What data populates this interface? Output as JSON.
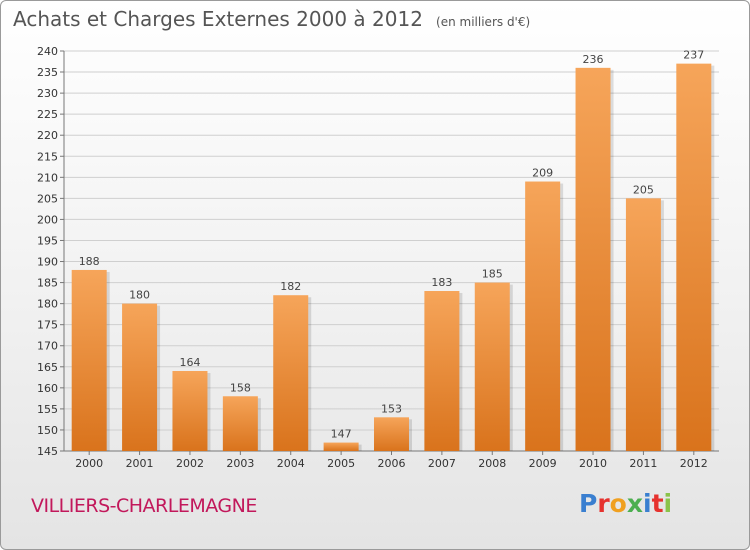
{
  "header": {
    "title": "Achats et Charges Externes 2000 à 2012",
    "unit": "(en milliers d'€)"
  },
  "footer": {
    "place": "VILLIERS-CHARLEMAGNE",
    "brand": "Proxiti"
  },
  "colors": {
    "bar_top": "#f6a55a",
    "bar_bottom": "#d9731c",
    "place": "#c2185b",
    "brand": [
      "#3a7fd0",
      "#e6322e",
      "#f0a020",
      "#4caf50",
      "#3a7fd0",
      "#e6322e",
      "#8bc34a"
    ]
  },
  "chart_data": {
    "type": "bar",
    "title": "Achats et Charges Externes 2000 à 2012",
    "subtitle": "(en milliers d'€)",
    "categories": [
      "2000",
      "2001",
      "2002",
      "2003",
      "2004",
      "2005",
      "2006",
      "2007",
      "2008",
      "2009",
      "2010",
      "2011",
      "2012"
    ],
    "values": [
      188,
      180,
      164,
      158,
      182,
      147,
      153,
      183,
      185,
      209,
      236,
      205,
      237
    ],
    "ylim": [
      145,
      240
    ],
    "yticks": [
      145,
      150,
      155,
      160,
      165,
      170,
      175,
      180,
      185,
      190,
      195,
      200,
      205,
      210,
      215,
      220,
      225,
      230,
      235,
      240
    ],
    "grid": true,
    "data_labels": true
  }
}
